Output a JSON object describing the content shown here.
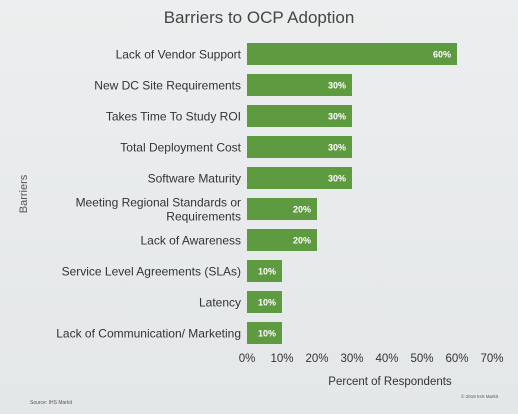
{
  "slide": {
    "title": "Barriers to OCP Adoption",
    "source": "Source: IHS Markit",
    "copyright": "© 2019 IHS Markit"
  },
  "chart_data": {
    "type": "bar",
    "orientation": "horizontal",
    "title": "Barriers to OCP Adoption",
    "ylabel": "Barriers",
    "xlabel": "Percent of Respondents",
    "xlim": [
      0,
      70
    ],
    "x_ticks": [
      "0%",
      "10%",
      "20%",
      "30%",
      "40%",
      "50%",
      "60%",
      "70%"
    ],
    "categories": [
      "Lack of Vendor Support",
      "New DC Site Requirements",
      "Takes Time To Study ROI",
      "Total Deployment Cost",
      "Software Maturity",
      "Meeting Regional Standards or Requirements",
      "Lack of Awareness",
      "Service Level Agreements (SLAs)",
      "Latency",
      "Lack of Communication/ Marketing"
    ],
    "category_lines": [
      [
        "Lack of Vendor Support"
      ],
      [
        "New DC Site Requirements"
      ],
      [
        "Takes Time To Study ROI"
      ],
      [
        "Total Deployment Cost"
      ],
      [
        "Software Maturity"
      ],
      [
        "Meeting Regional Standards or",
        "Requirements"
      ],
      [
        "Lack of Awareness"
      ],
      [
        "Service Level Agreements (SLAs)"
      ],
      [
        "Latency"
      ],
      [
        "Lack of Communication/ Marketing"
      ]
    ],
    "values": [
      60,
      30,
      30,
      30,
      30,
      20,
      20,
      10,
      10,
      10
    ],
    "data_labels": [
      "60%",
      "30%",
      "30%",
      "30%",
      "30%",
      "20%",
      "20%",
      "10%",
      "10%",
      "10%"
    ],
    "bar_color": "#5e9a3f",
    "label_color": "#ffffff",
    "grid": false,
    "legend": "none"
  }
}
